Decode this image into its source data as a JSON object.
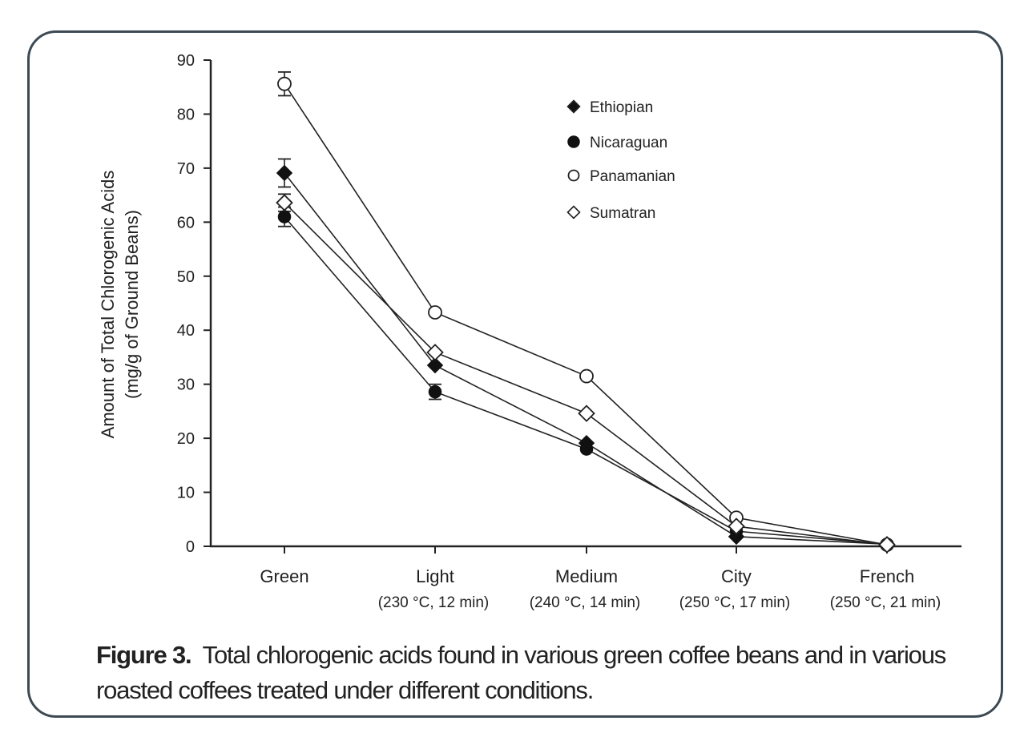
{
  "caption": {
    "label": "Figure 3.",
    "text": "Total chlorogenic acids found in various green coffee beans and in various roasted coffees treated under different conditions."
  },
  "chart_data": {
    "type": "line",
    "title": "",
    "xlabel": "",
    "ylabel": "Amount of Total Chlorogenic Acids",
    "ylabel_sub": "(mg/g of Ground Beans)",
    "ylim": [
      0,
      90
    ],
    "yticks": [
      0,
      10,
      20,
      30,
      40,
      50,
      60,
      70,
      80,
      90
    ],
    "grid": false,
    "legend_position": "top-right",
    "categories": [
      "Green",
      "Light",
      "Medium",
      "City",
      "French"
    ],
    "category_sublabels": [
      "",
      "(230 °C, 12 min)",
      "(240 °C, 14 min)",
      "(250 °C, 17 min)",
      "(250 °C, 21 min)"
    ],
    "series": [
      {
        "name": "Ethiopian",
        "marker": "diamond-filled",
        "values": [
          69.1,
          33.5,
          19.1,
          1.8,
          0.4
        ],
        "error_bars": [
          2.0,
          0,
          0,
          0,
          0
        ]
      },
      {
        "name": "Nicaraguan",
        "marker": "circle-filled",
        "values": [
          61.0,
          28.6,
          18.0,
          2.8,
          0.4
        ],
        "error_bars": [
          1.2,
          0.8,
          0,
          0,
          0
        ]
      },
      {
        "name": "Panamanian",
        "marker": "circle-open",
        "values": [
          85.6,
          43.3,
          31.5,
          5.3,
          0.3
        ],
        "error_bars": [
          1.6,
          0,
          0,
          0,
          0
        ]
      },
      {
        "name": "Sumatran",
        "marker": "diamond-open",
        "values": [
          63.6,
          35.9,
          24.6,
          3.7,
          0.3
        ],
        "error_bars": [
          1.0,
          0,
          0,
          0,
          0
        ]
      }
    ]
  }
}
